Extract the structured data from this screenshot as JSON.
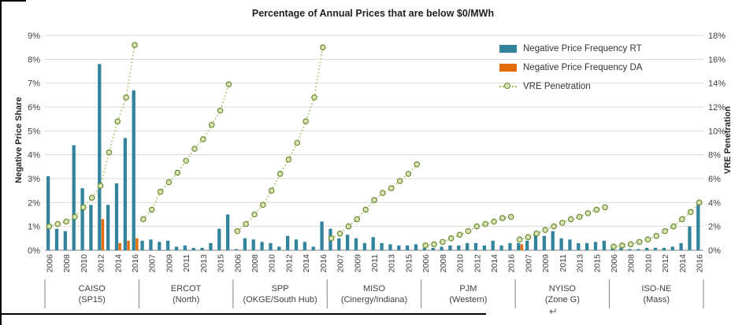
{
  "artifacts": {
    "paragraph_mark": "↵"
  },
  "chart_data": {
    "type": "bar",
    "title": "Percentage of Annual Prices that are below $0/MWh",
    "ylabel_left": "Negative Price Share",
    "ylabel_right": "VRE Penetration",
    "y_left": {
      "min": 0,
      "max": 9,
      "tick_step": 1,
      "format": "percent"
    },
    "y_right": {
      "min": 0,
      "max": 18,
      "tick_step": 2,
      "format": "percent"
    },
    "years": [
      2006,
      2007,
      2008,
      2009,
      2010,
      2011,
      2012,
      2013,
      2014,
      2015,
      2016
    ],
    "x_tick_rule": "every-other-category-continuous",
    "grid": true,
    "legend": [
      {
        "label": "Negative Price Frequency RT",
        "color": "#31849b",
        "type": "bar"
      },
      {
        "label": "Negative Price Frequency DA",
        "color": "#e36c09",
        "type": "bar"
      },
      {
        "label": "VRE Penetration",
        "color": "#9bbb59",
        "type": "dotted-line"
      }
    ],
    "colors": {
      "rt_bar": "#31849b",
      "da_bar": "#e36c09",
      "vre_line": "#9bbb59",
      "vre_marker_fill": "#d6e4b5",
      "vre_marker_stroke": "#6f8a31",
      "gridline": "#d9d9d9",
      "axis_line": "#808080",
      "text": "#404040"
    },
    "groups": [
      {
        "name": "CAISO",
        "sub": "(SP15)",
        "rt": [
          3.1,
          0.9,
          0.8,
          4.4,
          2.6,
          1.9,
          7.8,
          1.9,
          2.8,
          4.7,
          6.7
        ],
        "da": [
          0,
          0,
          0,
          0,
          0,
          0,
          1.3,
          0,
          0.3,
          0.4,
          0.5
        ],
        "vre": [
          2.0,
          2.2,
          2.4,
          2.8,
          3.6,
          4.4,
          5.4,
          8.2,
          10.8,
          12.8,
          17.2
        ]
      },
      {
        "name": "ERCOT",
        "sub": "(North)",
        "rt": [
          0.4,
          0.45,
          0.35,
          0.4,
          0.15,
          0.2,
          0.1,
          0.1,
          0.3,
          0.9,
          1.5
        ],
        "da": [
          0,
          0,
          0,
          0,
          0,
          0,
          0,
          0,
          0,
          0,
          0
        ],
        "vre": [
          2.6,
          3.4,
          4.9,
          5.7,
          6.5,
          7.5,
          8.5,
          9.3,
          10.5,
          11.7,
          13.9
        ]
      },
      {
        "name": "SPP",
        "sub": "(OKGE/South Hub)",
        "rt": [
          0.05,
          0.5,
          0.45,
          0.35,
          0.3,
          0.15,
          0.6,
          0.45,
          0.35,
          0.15,
          1.2
        ],
        "da": [
          0,
          0,
          0,
          0,
          0,
          0,
          0,
          0,
          0,
          0,
          0
        ],
        "vre": [
          1.6,
          2.2,
          3.0,
          3.8,
          5.0,
          6.4,
          7.6,
          9.0,
          10.8,
          12.8,
          17.0
        ]
      },
      {
        "name": "MISO",
        "sub": "(Cinergy/Indiana)",
        "rt": [
          0.9,
          0.5,
          0.65,
          0.5,
          0.3,
          0.55,
          0.3,
          0.25,
          0.2,
          0.2,
          0.25
        ],
        "da": [
          0,
          0,
          0,
          0,
          0,
          0,
          0,
          0,
          0,
          0,
          0
        ],
        "vre": [
          1.0,
          1.4,
          2.0,
          2.6,
          3.4,
          4.2,
          4.8,
          5.2,
          5.8,
          6.4,
          7.2
        ]
      },
      {
        "name": "PJM",
        "sub": "(Western)",
        "rt": [
          0.1,
          0.1,
          0.15,
          0.2,
          0.2,
          0.3,
          0.3,
          0.2,
          0.4,
          0.2,
          0.3
        ],
        "da": [
          0,
          0,
          0,
          0,
          0,
          0,
          0,
          0,
          0,
          0,
          0
        ],
        "vre": [
          0.4,
          0.5,
          0.7,
          1.0,
          1.3,
          1.6,
          2.0,
          2.2,
          2.4,
          2.7,
          2.8
        ]
      },
      {
        "name": "NYISO",
        "sub": "(Zone G)",
        "rt": [
          0.3,
          0.4,
          0.8,
          0.6,
          0.8,
          0.5,
          0.45,
          0.3,
          0.3,
          0.35,
          0.4
        ],
        "da": [
          0.25,
          0,
          0,
          0,
          0,
          0,
          0,
          0,
          0,
          0,
          0
        ],
        "vre": [
          0.9,
          1.1,
          1.4,
          1.7,
          2.0,
          2.3,
          2.6,
          2.8,
          3.1,
          3.4,
          3.6
        ]
      },
      {
        "name": "ISO-NE",
        "sub": "(Mass)",
        "rt": [
          0.15,
          0.1,
          0.05,
          0.05,
          0.1,
          0.1,
          0.1,
          0.15,
          0.3,
          1.0,
          1.9
        ],
        "da": [
          0,
          0,
          0,
          0,
          0,
          0,
          0,
          0,
          0,
          0,
          0
        ],
        "vre": [
          0.3,
          0.4,
          0.5,
          0.7,
          0.9,
          1.2,
          1.6,
          2.0,
          2.6,
          3.2,
          4.0
        ]
      }
    ]
  }
}
